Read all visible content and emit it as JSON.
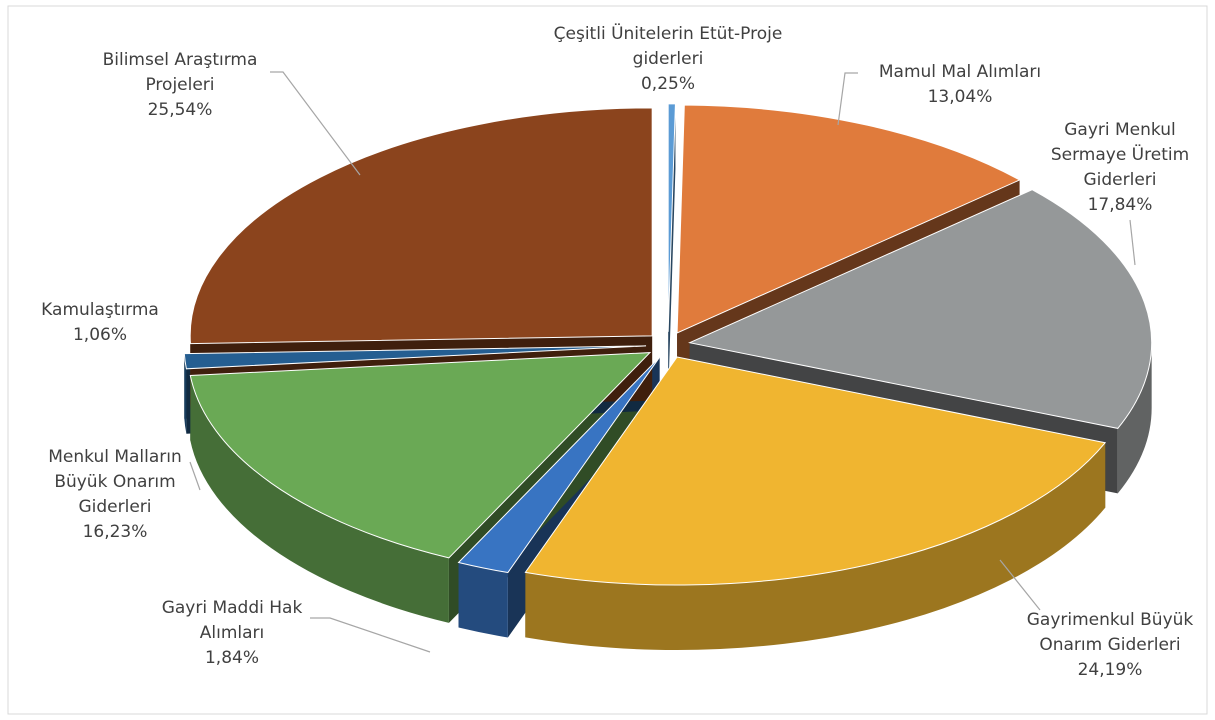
{
  "chart_data": {
    "type": "pie3d",
    "categories": [
      "Çeşitli Ünitelerin Etüt-Proje giderleri",
      "Mamul Mal Alımları",
      "Gayri Menkul Sermaye Üretim Giderleri",
      "Gayrimenkul Büyük Onarım Giderleri",
      "Gayri Maddi Hak Alımları",
      "Menkul Malların Büyük Onarım Giderleri",
      "Kamulaştırma",
      "Bilimsel Araştırma Projeleri"
    ],
    "values": [
      0.25,
      13.04,
      17.84,
      24.19,
      1.84,
      16.23,
      1.06,
      25.54
    ],
    "value_labels": [
      "0,25%",
      "13,04%",
      "17,84%",
      "24,19%",
      "1,84%",
      "16,23%",
      "1,06%",
      "25,54%"
    ],
    "colors": [
      "#5b9bd5",
      "#e07b3c",
      "#959899",
      "#f0b530",
      "#3874c2",
      "#6aa955",
      "#255e91",
      "#8b441d"
    ]
  }
}
